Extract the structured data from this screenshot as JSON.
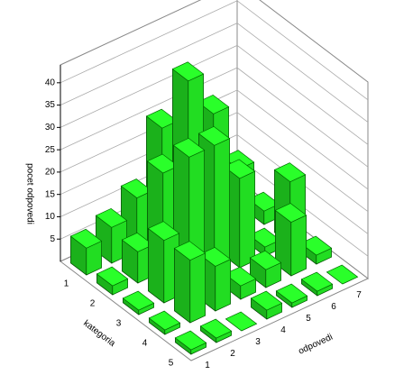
{
  "chart_data": {
    "type": "bar3d",
    "z_label": "pocet odpovedi",
    "y_label": "kategoria",
    "x_label": "odpovedi",
    "x": [
      "1",
      "2",
      "3",
      "4",
      "5",
      "6",
      "7"
    ],
    "categories": [
      "1",
      "2",
      "3",
      "4",
      "5"
    ],
    "values": [
      [
        6,
        8,
        12,
        25,
        12,
        3,
        1
      ],
      [
        2,
        7,
        22,
        40,
        30,
        15,
        3
      ],
      [
        1,
        14,
        30,
        30,
        20,
        2,
        14
      ],
      [
        1,
        14,
        10,
        3,
        4,
        12,
        2
      ],
      [
        1,
        1,
        0,
        2,
        1,
        1,
        0
      ]
    ],
    "color": "#22dd22",
    "zlim": [
      0,
      44
    ],
    "zticks": [
      5,
      10,
      15,
      20,
      25,
      30,
      35,
      40
    ],
    "grid": true
  }
}
